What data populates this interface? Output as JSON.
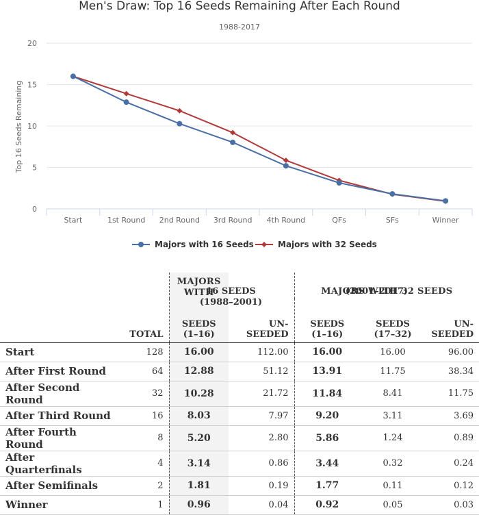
{
  "chart_data": {
    "type": "line",
    "title": "Men's Draw: Top 16 Seeds Remaining After Each Round",
    "subtitle": "1988-2017",
    "ylabel": "Top 16 Seeds Remaining",
    "xlabel": "",
    "ylim": [
      0,
      20
    ],
    "yticks": [
      0,
      5,
      10,
      15,
      20
    ],
    "categories": [
      "Start",
      "1st Round",
      "2nd Round",
      "3rd Round",
      "4th Round",
      "QFs",
      "SFs",
      "Winner"
    ],
    "series": [
      {
        "name": "Majors with 16 Seeds",
        "color": "#4a6fa5",
        "marker": "circle",
        "values": [
          16.0,
          12.88,
          10.28,
          8.03,
          5.2,
          3.14,
          1.81,
          0.96
        ]
      },
      {
        "name": "Majors with 32 Seeds",
        "color": "#b03a3a",
        "marker": "diamond",
        "values": [
          16.0,
          13.91,
          11.84,
          9.2,
          5.86,
          3.44,
          1.77,
          0.92
        ]
      }
    ],
    "legend": "bottom-center",
    "grid": true
  },
  "table": {
    "group16": {
      "title_l1": "MAJORS WITH",
      "title_l2": "16 SEEDS",
      "years": "(1988–2001)"
    },
    "group32": {
      "title": "MAJORS WITH 32 SEEDS",
      "years": "(2001–2017)"
    },
    "col_total": "TOTAL",
    "col_seeds_1": "SEEDS",
    "col_seeds_1b": "(1–16)",
    "col_unseeded_1": "UN-",
    "col_unseeded_1b": "SEEDED",
    "col_seeds_17": "SEEDS",
    "col_seeds_17b": "(17–32)",
    "rows": [
      {
        "label": "Start",
        "total": "128",
        "s16": "16.00",
        "u16": "112.00",
        "s32a": "16.00",
        "s32b": "16.00",
        "u32": "96.00"
      },
      {
        "label": "After First Round",
        "total": "64",
        "s16": "12.88",
        "u16": "51.12",
        "s32a": "13.91",
        "s32b": "11.75",
        "u32": "38.34"
      },
      {
        "label": "After Second Round",
        "total": "32",
        "s16": "10.28",
        "u16": "21.72",
        "s32a": "11.84",
        "s32b": "8.41",
        "u32": "11.75"
      },
      {
        "label": "After Third Round",
        "total": "16",
        "s16": "8.03",
        "u16": "7.97",
        "s32a": "9.20",
        "s32b": "3.11",
        "u32": "3.69"
      },
      {
        "label": "After Fourth Round",
        "total": "8",
        "s16": "5.20",
        "u16": "2.80",
        "s32a": "5.86",
        "s32b": "1.24",
        "u32": "0.89"
      },
      {
        "label": "After Quarterfinals",
        "total": "4",
        "s16": "3.14",
        "u16": "0.86",
        "s32a": "3.44",
        "s32b": "0.32",
        "u32": "0.24"
      },
      {
        "label": "After Semifinals",
        "total": "2",
        "s16": "1.81",
        "u16": "0.19",
        "s32a": "1.77",
        "s32b": "0.11",
        "u32": "0.12"
      },
      {
        "label": "Winner",
        "total": "1",
        "s16": "0.96",
        "u16": "0.04",
        "s32a": "0.92",
        "s32b": "0.05",
        "u32": "0.03"
      }
    ]
  }
}
